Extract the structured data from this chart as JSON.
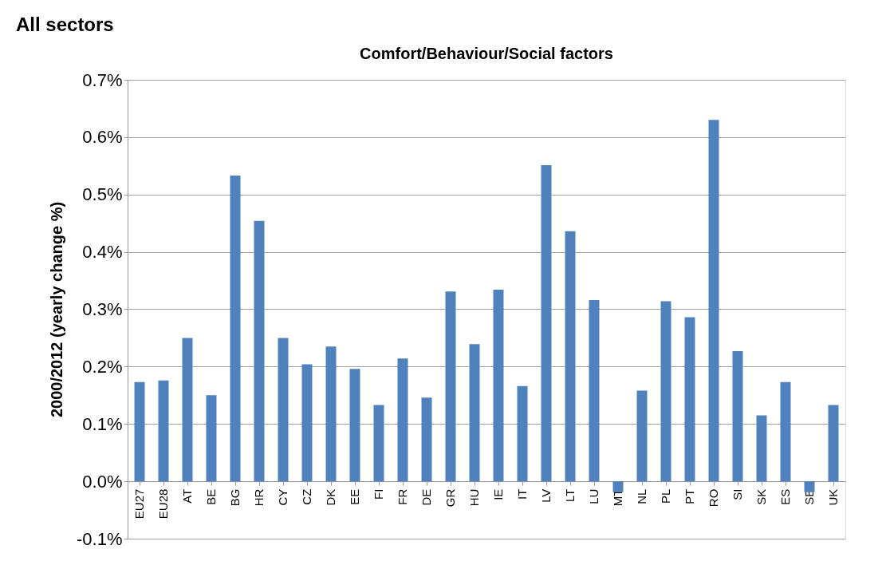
{
  "chart_data": {
    "type": "bar",
    "title": "All sectors",
    "subtitle": "Comfort/Behaviour/Social  factors",
    "ylabel": "2000/2012 (yearly change %)",
    "categories": [
      "EU27",
      "EU28",
      "AT",
      "BE",
      "BG",
      "HR",
      "CY",
      "CZ",
      "DK",
      "EE",
      "FI",
      "FR",
      "DE",
      "GR",
      "HU",
      "IE",
      "IT",
      "LV",
      "LT",
      "LU",
      "MT",
      "NL",
      "PL",
      "PT",
      "RO",
      "SI",
      "SK",
      "ES",
      "SE",
      "UK"
    ],
    "values": [
      0.173,
      0.176,
      0.25,
      0.15,
      0.533,
      0.454,
      0.25,
      0.204,
      0.235,
      0.196,
      0.133,
      0.214,
      0.146,
      0.331,
      0.239,
      0.334,
      0.166,
      0.551,
      0.436,
      0.316,
      -0.019,
      0.158,
      0.314,
      0.286,
      0.63,
      0.227,
      0.115,
      0.173,
      -0.019,
      0.133
    ],
    "color": "#4f81bd",
    "ylim": [
      -0.1,
      0.7
    ],
    "yticks": [
      {
        "value": -0.1,
        "label": "-0.1%"
      },
      {
        "value": 0.0,
        "label": "0.0%"
      },
      {
        "value": 0.1,
        "label": "0.1%"
      },
      {
        "value": 0.2,
        "label": "0.2%"
      },
      {
        "value": 0.3,
        "label": "0.3%"
      },
      {
        "value": 0.4,
        "label": "0.4%"
      },
      {
        "value": 0.5,
        "label": "0.5%"
      },
      {
        "value": 0.6,
        "label": "0.6%"
      },
      {
        "value": 0.7,
        "label": "0.7%"
      }
    ],
    "grid": "y"
  }
}
